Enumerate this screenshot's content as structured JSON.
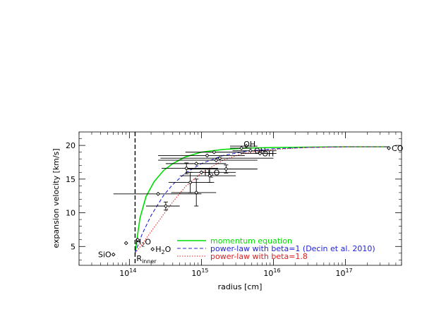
{
  "chart_data": {
    "type": "scatter",
    "xlabel": "radius [cm]",
    "ylabel": "expansion velocity [km/s]",
    "xscale": "log",
    "xlim": [
      20000000000000.0,
      6e+17
    ],
    "ylim": [
      2.2,
      22
    ],
    "x_ticks": [
      {
        "value": 100000000000000.0,
        "base": "10",
        "exp": "14"
      },
      {
        "value": 1000000000000000.0,
        "base": "10",
        "exp": "15"
      },
      {
        "value": 1e+16,
        "base": "10",
        "exp": "16"
      },
      {
        "value": 1e+17,
        "base": "10",
        "exp": "17"
      }
    ],
    "y_ticks": [
      5,
      10,
      15,
      20
    ],
    "grid": false,
    "legend_position": "bottom-right",
    "r_inner": {
      "x": 120000000000000.0,
      "label_main": "R",
      "label_sub": "inner"
    },
    "series": [
      {
        "name": "momentum equation",
        "style": "solid",
        "color": "#00dd00",
        "x": [
          120000000000000.0,
          140000000000000.0,
          170000000000000.0,
          220000000000000.0,
          300000000000000.0,
          400000000000000.0,
          600000000000000.0,
          1000000000000000.0,
          2000000000000000.0,
          4000000000000000.0,
          1e+16,
          3e+16,
          1e+17,
          4e+17
        ],
        "y": [
          4.0,
          9.2,
          12.4,
          14.6,
          16.3,
          17.3,
          18.3,
          19.0,
          19.4,
          19.6,
          19.7,
          19.75,
          19.8,
          19.8
        ]
      },
      {
        "name": "power-law with beta=1 (Decin et al. 2010)",
        "style": "dashed",
        "color": "#2020dd",
        "x": [
          120000000000000.0,
          150000000000000.0,
          200000000000000.0,
          300000000000000.0,
          400000000000000.0,
          600000000000000.0,
          1000000000000000.0,
          2000000000000000.0,
          4000000000000000.0,
          1e+16,
          3e+16,
          1e+17,
          4e+17
        ],
        "y": [
          4.0,
          6.8,
          9.6,
          12.6,
          14.2,
          15.9,
          17.3,
          18.5,
          19.1,
          19.5,
          19.7,
          19.8,
          19.8
        ]
      },
      {
        "name": "power-law with beta=1.8",
        "style": "dotted",
        "color": "#dd2020",
        "x": [
          120000000000000.0,
          150000000000000.0,
          200000000000000.0,
          300000000000000.0,
          400000000000000.0,
          600000000000000.0,
          1000000000000000.0,
          2000000000000000.0,
          4000000000000000.0,
          1e+16,
          3e+16,
          1e+17,
          4e+17
        ],
        "y": [
          4.0,
          5.3,
          7.2,
          9.8,
          11.6,
          13.9,
          15.9,
          17.8,
          18.9,
          19.4,
          19.7,
          19.8,
          19.8
        ]
      }
    ],
    "points": [
      {
        "x": 60000000000000.0,
        "y": 3.8
      },
      {
        "x": 90000000000000.0,
        "y": 5.5
      },
      {
        "x": 130000000000000.0,
        "y": 6.0
      },
      {
        "x": 210000000000000.0,
        "y": 4.6
      },
      {
        "x": 250000000000000.0,
        "y": 12.8,
        "xerr": [
          60000000000000.0,
          1000000000000000.0
        ]
      },
      {
        "x": 320000000000000.0,
        "y": 11.0,
        "xerr": [
          170000000000000.0,
          500000000000000.0
        ],
        "yerr": [
          0.6,
          0.6
        ]
      },
      {
        "x": 620000000000000.0,
        "y": 16.6,
        "xerr": [
          280000000000000.0,
          1700000000000000.0
        ],
        "yerr": [
          0.8,
          0.8
        ]
      },
      {
        "x": 700000000000000.0,
        "y": 14.5,
        "xerr": [
          350000000000000.0,
          1500000000000000.0
        ],
        "yerr": [
          1.5,
          1.5
        ]
      },
      {
        "x": 850000000000000.0,
        "y": 17.3,
        "xerr": [
          320000000000000.0,
          2200000000000000.0
        ]
      },
      {
        "x": 850000000000000.0,
        "y": 13.0,
        "xerr": [
          380000000000000.0,
          1600000000000000.0
        ],
        "yerr": [
          2.0,
          2.0
        ]
      },
      {
        "x": 1000000000000000.0,
        "y": 16.0,
        "xerr": [
          600000000000000.0,
          3000000000000000.0
        ]
      },
      {
        "x": 1200000000000000.0,
        "y": 18.5,
        "xerr": [
          250000000000000.0,
          4000000000000000.0
        ]
      },
      {
        "x": 1300000000000000.0,
        "y": 15.5,
        "xerr": [
          500000000000000.0,
          3000000000000000.0
        ],
        "yerr": [
          1.0,
          1.0
        ]
      },
      {
        "x": 1500000000000000.0,
        "y": 19.0,
        "xerr": [
          600000000000000.0,
          4000000000000000.0
        ]
      },
      {
        "x": 1600000000000000.0,
        "y": 17.8,
        "xerr": [
          250000000000000.0,
          6000000000000000.0
        ]
      },
      {
        "x": 1800000000000000.0,
        "y": 18.1,
        "xerr": [
          270000000000000.0,
          1e+16
        ]
      },
      {
        "x": 2200000000000000.0,
        "y": 16.5,
        "xerr": [
          600000000000000.0,
          6000000000000000.0
        ],
        "yerr": [
          0.6,
          0.6
        ]
      },
      {
        "x": 3600000000000000.0,
        "y": 19.6,
        "xerr": [
          2500000000000000.0,
          5000000000000000.0
        ]
      },
      {
        "x": 4200000000000000.0,
        "y": 19.9,
        "xerr": [
          2500000000000000.0,
          6000000000000000.0
        ]
      },
      {
        "x": 4800000000000000.0,
        "y": 19.2,
        "xerr": [
          2700000000000000.0,
          1.1e+16
        ]
      },
      {
        "x": 6500000000000000.0,
        "y": 18.8,
        "xerr": [
          3500000000000000.0,
          1.1e+16
        ]
      },
      {
        "x": 4e+17,
        "y": 19.6
      }
    ],
    "annotations": [
      {
        "text": "SiO",
        "x": 60000000000000.0,
        "y": 3.8,
        "anchor": "end",
        "dx": -3
      },
      {
        "text": "H",
        "sub": "2",
        "tail": "O",
        "x": 130000000000000.0,
        "y": 6.0,
        "anchor": "start",
        "dx": -3,
        "dy": 3
      },
      {
        "text": "H",
        "sub": "2",
        "tail": "O",
        "x": 210000000000000.0,
        "y": 4.6,
        "anchor": "start",
        "dx": 4
      },
      {
        "text": "H",
        "sub": "2",
        "tail": "O",
        "x": 1000000000000000.0,
        "y": 16.0,
        "anchor": "start",
        "dx": 4
      },
      {
        "text": "OH",
        "x": 3600000000000000.0,
        "y": 19.6,
        "anchor": "start",
        "dx": 3,
        "dy": -6
      },
      {
        "text": "OH",
        "x": 4800000000000000.0,
        "y": 19.2,
        "anchor": "start",
        "dx": 5
      },
      {
        "text": "OH",
        "x": 6500000000000000.0,
        "y": 18.8,
        "anchor": "start",
        "dx": 3
      },
      {
        "text": "CO",
        "x": 4e+17,
        "y": 19.6,
        "anchor": "start",
        "dx": 4
      }
    ]
  }
}
